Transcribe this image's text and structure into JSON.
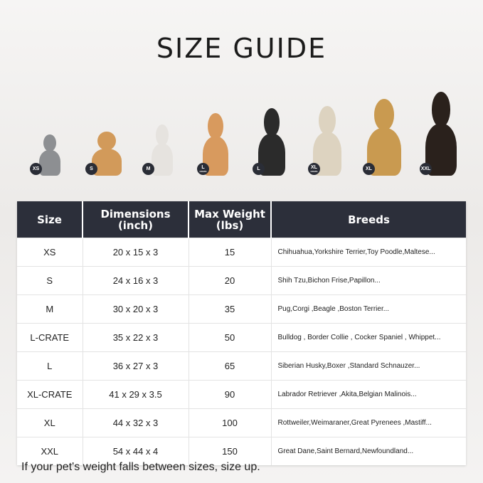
{
  "title": "SIZE GUIDE",
  "pets": [
    {
      "badge": "XS",
      "sub": ""
    },
    {
      "badge": "S",
      "sub": ""
    },
    {
      "badge": "M",
      "sub": ""
    },
    {
      "badge": "L",
      "sub": "CRATE"
    },
    {
      "badge": "L",
      "sub": ""
    },
    {
      "badge": "XL",
      "sub": "CRATE"
    },
    {
      "badge": "XL",
      "sub": ""
    },
    {
      "badge": "XXL",
      "sub": ""
    }
  ],
  "table": {
    "headers": [
      "Size",
      "Dimensions (inch)",
      "Max Weight (lbs)",
      "Breeds"
    ],
    "rows": [
      [
        "XS",
        "20 x 15 x 3",
        "15",
        "Chihuahua,Yorkshire Terrier,Toy Poodle,Maltese..."
      ],
      [
        "S",
        "24 x 16 x 3",
        "20",
        "Shih Tzu,Bichon Frise,Papillon..."
      ],
      [
        "M",
        "30 x 20 x 3",
        "35",
        "Pug,Corgi ,Beagle ,Boston Terrier..."
      ],
      [
        "L-CRATE",
        "35 x 22 x 3",
        "50",
        "Bulldog , Border Collie , Cocker Spaniel , Whippet..."
      ],
      [
        "L",
        "36 x 27 x 3",
        "65",
        "Siberian Husky,Boxer ,Standard Schnauzer..."
      ],
      [
        "XL-CRATE",
        "41 x 29 x 3.5",
        "90",
        "Labrador Retriever ,Akita,Belgian Malinois..."
      ],
      [
        "XL",
        "44 x 32 x 3",
        "100",
        "Rottweiler,Weimaraner,Great Pyrenees ,Mastiff..."
      ],
      [
        "XXL",
        "54 x 44 x 4",
        "150",
        "Great Dane,Saint Bernard,Newfoundland..."
      ]
    ]
  },
  "note": "If your pet's weight falls between sizes, size up."
}
